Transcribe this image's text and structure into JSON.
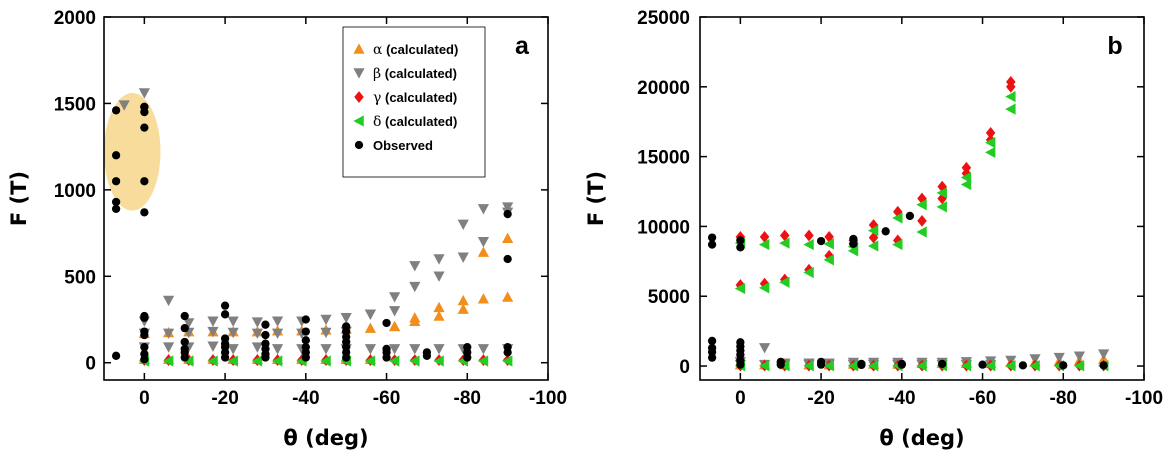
{
  "chart_data": [
    {
      "type": "scatter",
      "panel_label": "a",
      "xlabel": "θ (deg)",
      "ylabel": "F (T)",
      "xlim": [
        10,
        -100
      ],
      "ylim": [
        -100,
        2000
      ],
      "xticks": [
        0,
        -20,
        -40,
        -60,
        -80,
        -100
      ],
      "xtick_labels": [
        "0",
        "-20",
        "-40",
        "-60",
        "-80",
        "-100"
      ],
      "yticks": [
        0,
        500,
        1000,
        1500,
        2000
      ],
      "ytick_labels": [
        "0",
        "500",
        "1000",
        "1500",
        "2000"
      ],
      "legend_position": "top-right",
      "highlight_ellipse": {
        "cx": 3,
        "cy": 1220,
        "rx": 7,
        "ry": 340,
        "color": "#f8dc9c"
      },
      "series": [
        {
          "name": "α (calculated)",
          "symbol": "α",
          "label_rest": " (calculated)",
          "marker": "triangle-up",
          "color": "#f28e1c",
          "x": [
            0,
            -6,
            -11,
            -17,
            -22,
            -28,
            -33,
            -39,
            -45,
            -50,
            -56,
            -62,
            -67,
            -73,
            -79,
            -84,
            -90,
            0,
            -6,
            -11,
            -17,
            -22,
            -28,
            -33,
            -39,
            -45,
            -50,
            -56,
            -62,
            -67,
            -73,
            -79,
            -84,
            -90
          ],
          "y": [
            170,
            175,
            180,
            180,
            180,
            180,
            185,
            185,
            190,
            195,
            200,
            210,
            240,
            270,
            310,
            370,
            380,
            20,
            20,
            20,
            20,
            20,
            20,
            20,
            20,
            20,
            20,
            20,
            210,
            260,
            320,
            360,
            640,
            720
          ]
        },
        {
          "name": "β (calculated)",
          "symbol": "β",
          "label_rest": " (calculated)",
          "marker": "triangle-down",
          "color": "#808080",
          "x": [
            0,
            -6,
            -11,
            -17,
            -22,
            -28,
            -33,
            -39,
            -45,
            -50,
            -56,
            -62,
            -67,
            -73,
            -79,
            -84,
            -90,
            0,
            -6,
            -11,
            -17,
            -22,
            -28,
            -33,
            -39,
            -45,
            -50,
            -56,
            -62,
            -67,
            -73,
            -79,
            -84,
            -90,
            0,
            -6,
            -11,
            -17,
            -22,
            -28,
            -33,
            -39,
            -45,
            -50,
            -56,
            -62,
            -67,
            -73,
            -79,
            -84,
            -90,
            0,
            5
          ],
          "y": [
            240,
            360,
            230,
            240,
            240,
            235,
            240,
            240,
            250,
            260,
            280,
            380,
            440,
            500,
            610,
            700,
            900,
            170,
            170,
            175,
            180,
            175,
            170,
            170,
            170,
            175,
            180,
            280,
            300,
            560,
            600,
            800,
            890,
            870,
            90,
            90,
            90,
            95,
            80,
            90,
            80,
            80,
            80,
            80,
            80,
            80,
            80,
            80,
            80,
            80,
            80,
            1560,
            1490
          ]
        },
        {
          "name": "γ (calculated)",
          "symbol": "γ",
          "label_rest": " (calculated)",
          "marker": "diamond",
          "color": "#ee1111",
          "x": [
            0,
            -6,
            -11,
            -17,
            -22,
            -28,
            -33,
            -39,
            -45,
            -50,
            -56,
            -62,
            -67,
            -73,
            -79,
            -84,
            -90
          ],
          "y": [
            15,
            15,
            15,
            15,
            15,
            15,
            15,
            15,
            15,
            15,
            15,
            15,
            15,
            15,
            15,
            15,
            15
          ]
        },
        {
          "name": "δ (calculated)",
          "symbol": "δ",
          "label_rest": " (calculated)",
          "marker": "triangle-left",
          "color": "#22cc22",
          "x": [
            0,
            -6,
            -11,
            -17,
            -22,
            -28,
            -33,
            -39,
            -45,
            -50,
            -56,
            -62,
            -67,
            -73,
            -79,
            -84,
            -90
          ],
          "y": [
            10,
            10,
            10,
            10,
            10,
            10,
            10,
            10,
            10,
            10,
            10,
            10,
            10,
            10,
            10,
            10,
            10
          ]
        },
        {
          "name": "Observed",
          "symbol": "",
          "label_rest": "Observed",
          "marker": "circle",
          "color": "#000000",
          "x": [
            0,
            0,
            0,
            0,
            0,
            0,
            0,
            0,
            0,
            0,
            0,
            0,
            0,
            7,
            7,
            7,
            7,
            7,
            7,
            -10,
            -10,
            -10,
            -10,
            -10,
            -10,
            -20,
            -20,
            -20,
            -20,
            -20,
            -20,
            -20,
            -30,
            -30,
            -30,
            -30,
            -30,
            -30,
            -40,
            -40,
            -40,
            -40,
            -40,
            -40,
            -50,
            -50,
            -50,
            -50,
            -50,
            -50,
            -50,
            -60,
            -60,
            -60,
            -60,
            -70,
            -70,
            -80,
            -80,
            -80,
            -90,
            -90,
            -90,
            -90
          ],
          "y": [
            270,
            260,
            180,
            160,
            90,
            50,
            20,
            1480,
            1360,
            1050,
            870,
            1450,
            1480,
            1460,
            1200,
            1050,
            930,
            890,
            40,
            270,
            200,
            120,
            80,
            60,
            30,
            330,
            280,
            140,
            110,
            90,
            60,
            30,
            220,
            160,
            110,
            80,
            50,
            30,
            250,
            180,
            130,
            90,
            60,
            30,
            210,
            180,
            150,
            120,
            90,
            60,
            30,
            230,
            80,
            60,
            30,
            60,
            40,
            90,
            60,
            30,
            860,
            600,
            90,
            60
          ]
        }
      ]
    },
    {
      "type": "scatter",
      "panel_label": "b",
      "xlabel": "θ (deg)",
      "ylabel": "F (T)",
      "xlim": [
        10,
        -100
      ],
      "ylim": [
        -1000,
        25000
      ],
      "xticks": [
        0,
        -20,
        -40,
        -60,
        -80,
        -100
      ],
      "xtick_labels": [
        "0",
        "-20",
        "-40",
        "-60",
        "-80",
        "-100"
      ],
      "yticks": [
        0,
        5000,
        10000,
        15000,
        20000,
        25000
      ],
      "ytick_labels": [
        "0",
        "5000",
        "10000",
        "15000",
        "20000",
        "25000"
      ],
      "series": [
        {
          "name": "α (calculated)",
          "marker": "triangle-up",
          "color": "#f28e1c",
          "x": [
            0,
            -6,
            -11,
            -17,
            -22,
            -28,
            -33,
            -39,
            -45,
            -50,
            -56,
            -62,
            -67,
            -73,
            -79,
            -84,
            -90
          ],
          "y": [
            100,
            100,
            100,
            100,
            100,
            150,
            150,
            150,
            200,
            200,
            200,
            200,
            250,
            300,
            350,
            400,
            500
          ]
        },
        {
          "name": "β (calculated)",
          "marker": "triangle-down",
          "color": "#808080",
          "x": [
            0,
            -6,
            -11,
            -17,
            -22,
            -28,
            -33,
            -39,
            -45,
            -50,
            -56,
            -62,
            -67,
            -73,
            -79,
            -84,
            -90,
            0,
            -6,
            -11,
            -17,
            -22,
            -28,
            -33,
            -39,
            -45,
            -50,
            -56,
            -62
          ],
          "y": [
            300,
            1300,
            200,
            200,
            200,
            250,
            250,
            250,
            250,
            250,
            300,
            350,
            400,
            500,
            600,
            700,
            850,
            100,
            100,
            100,
            100,
            100,
            100,
            100,
            100,
            100,
            100,
            100,
            100
          ]
        },
        {
          "name": "γ (calculated)",
          "marker": "diamond",
          "color": "#ee1111",
          "x": [
            0,
            -6,
            -11,
            -17,
            -22,
            -28,
            -33,
            -39,
            -45,
            -50,
            -56,
            -62,
            -67,
            0,
            -6,
            -11,
            -17,
            -22,
            -28,
            -33,
            -39,
            -45,
            -50,
            -56,
            -62,
            -67,
            0,
            -6,
            -11,
            -17,
            -22,
            -28,
            -33,
            -39,
            -45,
            -50,
            -56,
            -62,
            -67,
            -73,
            -79,
            -84,
            -90
          ],
          "y": [
            9250,
            9250,
            9350,
            9350,
            9250,
            9000,
            10100,
            11050,
            12000,
            12850,
            14200,
            16700,
            20350,
            5800,
            5900,
            6200,
            6900,
            7900,
            8750,
            9200,
            9000,
            10400,
            12000,
            13800,
            16200,
            20000,
            30,
            30,
            30,
            30,
            30,
            30,
            30,
            30,
            30,
            30,
            30,
            30,
            30,
            30,
            30,
            30,
            30
          ]
        },
        {
          "name": "δ (calculated)",
          "marker": "triangle-left",
          "color": "#22cc22",
          "x": [
            0,
            -6,
            -11,
            -17,
            -22,
            -28,
            -33,
            -39,
            -45,
            -50,
            -56,
            -62,
            -67,
            0,
            -6,
            -11,
            -17,
            -22,
            -28,
            -33,
            -39,
            -45,
            -50,
            -56,
            -62,
            -67,
            0,
            -6,
            -11,
            -17,
            -22,
            -28,
            -33,
            -39,
            -45,
            -50,
            -56,
            -62,
            -67,
            -73,
            -79,
            -84,
            -90
          ],
          "y": [
            8800,
            8700,
            8800,
            8700,
            8750,
            8550,
            9700,
            10600,
            11550,
            12400,
            13500,
            16000,
            19300,
            5550,
            5600,
            6000,
            6700,
            7600,
            8250,
            8600,
            8700,
            9600,
            11400,
            13000,
            15300,
            18400,
            20,
            20,
            20,
            20,
            20,
            20,
            20,
            20,
            20,
            20,
            20,
            20,
            20,
            20,
            20,
            20,
            20
          ]
        },
        {
          "name": "Observed",
          "marker": "circle",
          "color": "#000000",
          "x": [
            0,
            0,
            0,
            0,
            0,
            0,
            0,
            0,
            7,
            7,
            7,
            7,
            7,
            7,
            -10,
            -10,
            -20,
            -20,
            -30,
            -30,
            -40,
            -40,
            -50,
            -60,
            -70,
            -80,
            -90,
            -20,
            -28,
            -28,
            -36,
            -42
          ],
          "y": [
            9000,
            8500,
            1700,
            1400,
            1100,
            800,
            400,
            100,
            9200,
            8700,
            1800,
            1300,
            1000,
            600,
            300,
            100,
            300,
            100,
            150,
            80,
            150,
            100,
            150,
            100,
            50,
            50,
            50,
            8950,
            9100,
            8750,
            9650,
            10750
          ]
        }
      ]
    }
  ]
}
